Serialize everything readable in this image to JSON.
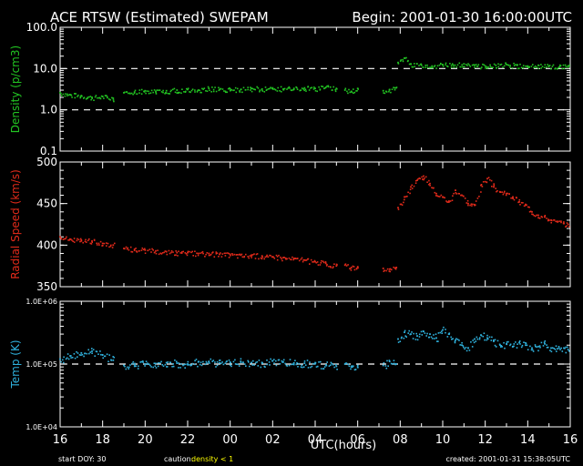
{
  "header": {
    "title": "ACE RTSW (Estimated) SWEPAM",
    "begin": "Begin: 2001-01-30 16:00:00UTC"
  },
  "footer": {
    "start_doy": "start DOY:  30",
    "caution_label": "caution:",
    "caution_value": "density < 1",
    "xlabel": "UTC(hours)",
    "created": "created: 2001-01-31 15:38:05UTC"
  },
  "colors": {
    "background": "#000000",
    "axes": "#ffffff",
    "density": "#22c422",
    "speed": "#e12a1a",
    "temp": "#2fb1dd",
    "caution": "#ffff00"
  },
  "chart_data": {
    "type": "scatter",
    "x_range": [
      16,
      40
    ],
    "x_ticks": [
      "16",
      "18",
      "20",
      "22",
      "00",
      "02",
      "04",
      "06",
      "08",
      "10",
      "12",
      "14",
      "16"
    ],
    "panels": [
      {
        "key": "density",
        "ylabel": "Density (p/cm3)",
        "scale": "log",
        "ylim": [
          0.1,
          100
        ],
        "ticks": [
          "100.0",
          "10.0",
          "1.0",
          "0.1"
        ],
        "reference_lines": [
          10,
          1
        ],
        "segments": [
          {
            "x": [
              16.0,
              16.5,
              17.0,
              17.5,
              18.0,
              18.5
            ],
            "y": [
              2.6,
              2.3,
              2.2,
              2.0,
              2.1,
              1.9
            ]
          },
          {
            "x": [
              19.0,
              19.5,
              20.0,
              20.5,
              21.0,
              21.5,
              22.0,
              22.5,
              23.0,
              23.5,
              24.0,
              24.5,
              25.0,
              25.5,
              26.0,
              26.5,
              27.0,
              27.5,
              28.0,
              28.5,
              29.0
            ],
            "y": [
              2.6,
              2.7,
              2.9,
              2.8,
              2.9,
              3.0,
              3.1,
              3.0,
              3.3,
              3.1,
              3.2,
              3.1,
              3.3,
              3.2,
              3.4,
              3.2,
              3.3,
              3.4,
              3.3,
              3.5,
              3.3
            ]
          },
          {
            "x": [
              29.4,
              29.7,
              30.0
            ],
            "y": [
              3.0,
              2.8,
              3.3
            ]
          },
          {
            "x": [
              31.2,
              31.5,
              31.8
            ],
            "y": [
              2.9,
              3.1,
              3.4
            ]
          },
          {
            "x": [
              31.9,
              32.2,
              32.5,
              33.0,
              33.5,
              34.0,
              34.5,
              35.0,
              35.5,
              36.0,
              36.5,
              37.0,
              37.5,
              38.0,
              38.5,
              39.0,
              39.5,
              39.9
            ],
            "y": [
              14,
              18,
              13,
              12,
              11.5,
              12.5,
              12,
              13,
              12,
              11.5,
              12,
              12.5,
              12,
              11.5,
              12,
              11.5,
              11,
              11
            ]
          }
        ]
      },
      {
        "key": "speed",
        "ylabel": "Radial Speed (km/s)",
        "scale": "linear",
        "ylim": [
          350,
          500
        ],
        "ticks": [
          "500",
          "450",
          "400",
          "350"
        ],
        "reference_lines": [],
        "segments": [
          {
            "x": [
              16.0,
              16.5,
              17.0,
              17.5,
              18.0,
              18.5
            ],
            "y": [
              410,
              407,
              406,
              405,
              402,
              400
            ]
          },
          {
            "x": [
              19.0,
              19.5,
              20.0,
              20.5,
              21.0,
              21.5,
              22.0,
              22.5,
              23.0,
              23.5,
              24.0,
              24.5,
              25.0,
              25.5,
              26.0,
              26.5,
              27.0,
              27.5,
              28.0,
              28.5,
              29.0
            ],
            "y": [
              396,
              395,
              394,
              393,
              392,
              391,
              391,
              390,
              390,
              389,
              389,
              388,
              388,
              387,
              386,
              385,
              384,
              382,
              380,
              378,
              375
            ]
          },
          {
            "x": [
              29.4,
              29.7,
              30.0
            ],
            "y": [
              376,
              373,
              374
            ]
          },
          {
            "x": [
              31.2,
              31.5,
              31.8
            ],
            "y": [
              372,
              371,
              373
            ]
          },
          {
            "x": [
              31.9,
              32.2,
              32.5,
              32.8,
              33.1,
              33.4,
              33.7,
              34.0,
              34.3,
              34.6,
              34.9,
              35.2,
              35.5,
              35.8,
              36.1,
              36.4,
              36.7,
              37.0,
              37.3,
              37.6,
              37.9,
              38.2,
              38.5,
              38.8,
              39.1,
              39.4,
              39.7,
              39.9
            ],
            "y": [
              445,
              458,
              470,
              478,
              483,
              474,
              462,
              458,
              452,
              466,
              460,
              450,
              448,
              472,
              480,
              470,
              464,
              462,
              458,
              452,
              448,
              440,
              436,
              434,
              430,
              428,
              426,
              425
            ]
          }
        ]
      },
      {
        "key": "temp",
        "ylabel": "Temp (K)",
        "scale": "log",
        "ylim": [
          10000,
          1000000
        ],
        "ticks": [
          "1.0E+06",
          "1.0E+05",
          "1.0E+04"
        ],
        "reference_lines": [
          100000
        ],
        "segments": [
          {
            "x": [
              16.0,
              16.5,
              17.0,
              17.5,
              18.0,
              18.5
            ],
            "y": [
              120000,
              135000,
              150000,
              160000,
              140000,
              115000
            ]
          },
          {
            "x": [
              19.0,
              19.5,
              20.0,
              20.5,
              21.0,
              21.5,
              22.0,
              22.5,
              23.0,
              23.5,
              24.0,
              24.5,
              25.0,
              25.5,
              26.0,
              26.5,
              27.0,
              27.5,
              28.0,
              28.5,
              29.0
            ],
            "y": [
              95000,
              98000,
              100000,
              102000,
              105000,
              103000,
              100000,
              108000,
              110000,
              104000,
              107000,
              110000,
              105000,
              104000,
              112000,
              108000,
              104000,
              103000,
              101000,
              97000,
              92000
            ]
          },
          {
            "x": [
              29.4,
              29.7,
              30.0
            ],
            "y": [
              100000,
              90000,
              95000
            ]
          },
          {
            "x": [
              31.2,
              31.5,
              31.8
            ],
            "y": [
              95000,
              110000,
              100000
            ]
          },
          {
            "x": [
              31.9,
              32.2,
              32.5,
              32.8,
              33.1,
              33.4,
              33.7,
              34.0,
              34.3,
              34.6,
              34.9,
              35.2,
              35.5,
              35.8,
              36.1,
              36.4,
              36.7,
              37.0,
              37.3,
              37.6,
              37.9,
              38.2,
              38.5,
              38.8,
              39.1,
              39.4,
              39.7,
              39.9
            ],
            "y": [
              250000,
              320000,
              300000,
              280000,
              330000,
              300000,
              260000,
              350000,
              300000,
              240000,
              200000,
              180000,
              250000,
              290000,
              260000,
              230000,
              200000,
              210000,
              190000,
              220000,
              200000,
              180000,
              190000,
              210000,
              180000,
              175000,
              180000,
              170000
            ]
          }
        ]
      }
    ]
  }
}
